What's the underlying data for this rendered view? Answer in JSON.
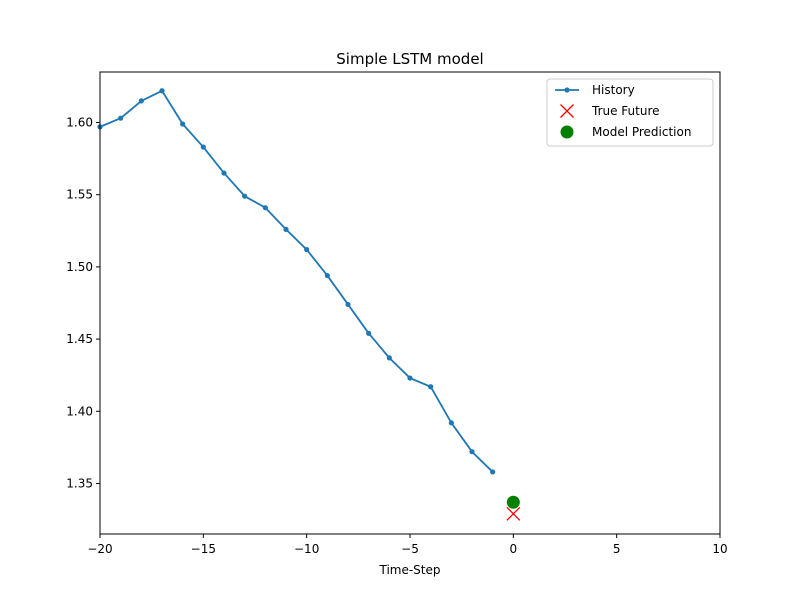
{
  "chart_data": {
    "type": "line",
    "title": "Simple LSTM model",
    "xlabel": "Time-Step",
    "ylabel": "",
    "xlim": [
      -20,
      10
    ],
    "ylim": [
      1.315,
      1.635
    ],
    "xticks": [
      -20,
      -15,
      -10,
      -5,
      0,
      5,
      10
    ],
    "xtick_labels": [
      "−20",
      "−15",
      "−10",
      "−5",
      "0",
      "5",
      "10"
    ],
    "yticks": [
      1.35,
      1.4,
      1.45,
      1.5,
      1.55,
      1.6
    ],
    "ytick_labels": [
      "1.35",
      "1.40",
      "1.45",
      "1.50",
      "1.55",
      "1.60"
    ],
    "grid": false,
    "legend_position": "top-right",
    "series": [
      {
        "name": "History",
        "style": "line-with-dots",
        "color": "#1f77b4",
        "x": [
          -20,
          -19,
          -18,
          -17,
          -16,
          -15,
          -14,
          -13,
          -12,
          -11,
          -10,
          -9,
          -8,
          -7,
          -6,
          -5,
          -4,
          -3,
          -2,
          -1
        ],
        "y": [
          1.597,
          1.603,
          1.615,
          1.622,
          1.599,
          1.583,
          1.565,
          1.549,
          1.541,
          1.526,
          1.512,
          1.494,
          1.474,
          1.454,
          1.437,
          1.423,
          1.417,
          1.392,
          1.372,
          1.358
        ]
      },
      {
        "name": "True Future",
        "style": "x-marker",
        "color": "#ff0000",
        "x": [
          0
        ],
        "y": [
          1.329
        ]
      },
      {
        "name": "Model Prediction",
        "style": "circle-marker",
        "color": "#008000",
        "x": [
          0
        ],
        "y": [
          1.337
        ]
      }
    ]
  }
}
